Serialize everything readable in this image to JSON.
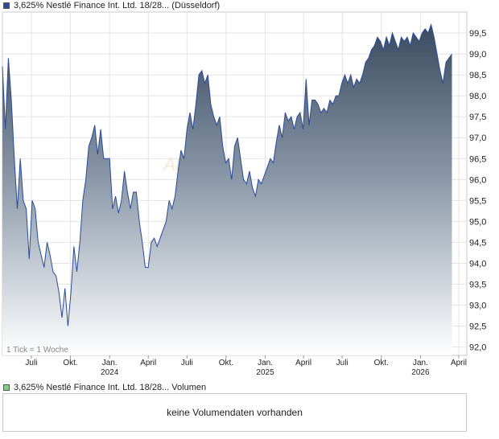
{
  "legend": {
    "price_label": "3,625% Nestlé Finance Int. Ltd. 18/28... (Düsseldorf)",
    "volume_label": "3,625% Nestlé Finance Int. Ltd. 18/28... Volumen",
    "price_color": "#2a4a9a",
    "volume_color": "#7fcf7f"
  },
  "tick_note": "1 Tick = 1 Woche",
  "watermark": "AKTIE",
  "volume_message": "keine Volumendaten vorhanden",
  "chart_data": {
    "type": "area",
    "ylim": [
      91.8,
      100.0
    ],
    "yticks": [
      92.0,
      92.5,
      93.0,
      93.5,
      94.0,
      94.5,
      95.0,
      95.5,
      96.0,
      96.5,
      97.0,
      97.5,
      98.0,
      98.5,
      99.0,
      99.5
    ],
    "ytick_labels": [
      "92,0",
      "92,5",
      "93,0",
      "93,5",
      "94,0",
      "94,5",
      "95,0",
      "95,5",
      "96,0",
      "96,5",
      "97,0",
      "97,5",
      "98,0",
      "98,5",
      "99,0",
      "99,5"
    ],
    "xlim": [
      "2023-04-24",
      "2026-04-20"
    ],
    "xticks": [
      {
        "date": "2023-07-01",
        "label": "Juli",
        "year": ""
      },
      {
        "date": "2023-10-01",
        "label": "Okt.",
        "year": ""
      },
      {
        "date": "2024-01-01",
        "label": "Jan.",
        "year": "2024"
      },
      {
        "date": "2024-04-01",
        "label": "April",
        "year": ""
      },
      {
        "date": "2024-07-01",
        "label": "Juli",
        "year": ""
      },
      {
        "date": "2024-10-01",
        "label": "Okt.",
        "year": ""
      },
      {
        "date": "2025-01-01",
        "label": "Jan.",
        "year": "2025"
      },
      {
        "date": "2025-04-01",
        "label": "April",
        "year": ""
      },
      {
        "date": "2025-07-01",
        "label": "Juli",
        "year": ""
      },
      {
        "date": "2025-10-01",
        "label": "Okt.",
        "year": ""
      },
      {
        "date": "2026-01-01",
        "label": "Jan.",
        "year": "2026"
      },
      {
        "date": "2026-04-01",
        "label": "April",
        "year": ""
      }
    ],
    "grid": true,
    "legend_position": "top-left",
    "series": [
      {
        "name": "3,625% Nestlé Finance Int. Ltd. 18/28... (Düsseldorf)",
        "color": "#2a4a9a",
        "points": [
          [
            "2023-04-24",
            98.7
          ],
          [
            "2023-05-01",
            97.2
          ],
          [
            "2023-05-08",
            98.9
          ],
          [
            "2023-05-15",
            97.9
          ],
          [
            "2023-05-22",
            96.5
          ],
          [
            "2023-05-29",
            95.3
          ],
          [
            "2023-06-05",
            96.5
          ],
          [
            "2023-06-12",
            95.5
          ],
          [
            "2023-06-19",
            95.3
          ],
          [
            "2023-06-26",
            94.1
          ],
          [
            "2023-07-03",
            95.5
          ],
          [
            "2023-07-10",
            95.3
          ],
          [
            "2023-07-17",
            94.5
          ],
          [
            "2023-07-24",
            94.2
          ],
          [
            "2023-07-31",
            93.9
          ],
          [
            "2023-08-07",
            94.5
          ],
          [
            "2023-08-14",
            94.2
          ],
          [
            "2023-08-21",
            93.8
          ],
          [
            "2023-08-28",
            93.7
          ],
          [
            "2023-09-04",
            93.3
          ],
          [
            "2023-09-11",
            92.7
          ],
          [
            "2023-09-18",
            93.4
          ],
          [
            "2023-09-25",
            92.5
          ],
          [
            "2023-10-02",
            93.3
          ],
          [
            "2023-10-09",
            94.4
          ],
          [
            "2023-10-16",
            93.8
          ],
          [
            "2023-10-23",
            94.5
          ],
          [
            "2023-10-30",
            95.5
          ],
          [
            "2023-11-06",
            96.0
          ],
          [
            "2023-11-13",
            96.8
          ],
          [
            "2023-11-20",
            97.0
          ],
          [
            "2023-11-27",
            97.3
          ],
          [
            "2023-12-04",
            96.6
          ],
          [
            "2023-12-11",
            97.2
          ],
          [
            "2023-12-18",
            96.5
          ],
          [
            "2023-12-25",
            96.5
          ],
          [
            "2024-01-01",
            96.5
          ],
          [
            "2024-01-08",
            95.3
          ],
          [
            "2024-01-15",
            95.6
          ],
          [
            "2024-01-22",
            95.2
          ],
          [
            "2024-01-29",
            95.5
          ],
          [
            "2024-02-05",
            96.2
          ],
          [
            "2024-02-12",
            95.7
          ],
          [
            "2024-02-19",
            95.3
          ],
          [
            "2024-02-26",
            95.7
          ],
          [
            "2024-03-04",
            95.7
          ],
          [
            "2024-03-11",
            95.0
          ],
          [
            "2024-03-18",
            94.5
          ],
          [
            "2024-03-25",
            93.9
          ],
          [
            "2024-04-01",
            93.9
          ],
          [
            "2024-04-08",
            94.5
          ],
          [
            "2024-04-15",
            94.6
          ],
          [
            "2024-04-22",
            94.4
          ],
          [
            "2024-04-29",
            94.6
          ],
          [
            "2024-05-06",
            94.8
          ],
          [
            "2024-05-13",
            95.0
          ],
          [
            "2024-05-20",
            95.5
          ],
          [
            "2024-05-27",
            95.3
          ],
          [
            "2024-06-03",
            95.6
          ],
          [
            "2024-06-10",
            96.2
          ],
          [
            "2024-06-17",
            96.7
          ],
          [
            "2024-06-24",
            96.5
          ],
          [
            "2024-07-01",
            97.2
          ],
          [
            "2024-07-08",
            97.6
          ],
          [
            "2024-07-15",
            97.2
          ],
          [
            "2024-07-22",
            97.8
          ],
          [
            "2024-07-29",
            98.5
          ],
          [
            "2024-08-05",
            98.6
          ],
          [
            "2024-08-12",
            98.3
          ],
          [
            "2024-08-19",
            98.5
          ],
          [
            "2024-08-26",
            97.8
          ],
          [
            "2024-09-02",
            97.5
          ],
          [
            "2024-09-09",
            97.3
          ],
          [
            "2024-09-16",
            97.5
          ],
          [
            "2024-09-23",
            96.8
          ],
          [
            "2024-09-30",
            96.4
          ],
          [
            "2024-10-07",
            96.5
          ],
          [
            "2024-10-14",
            96.0
          ],
          [
            "2024-10-21",
            96.8
          ],
          [
            "2024-10-28",
            97.0
          ],
          [
            "2024-11-04",
            96.5
          ],
          [
            "2024-11-11",
            96.0
          ],
          [
            "2024-11-18",
            95.9
          ],
          [
            "2024-11-25",
            96.2
          ],
          [
            "2024-12-02",
            95.8
          ],
          [
            "2024-12-09",
            95.6
          ],
          [
            "2024-12-16",
            96.0
          ],
          [
            "2024-12-23",
            95.9
          ],
          [
            "2024-12-30",
            96.1
          ],
          [
            "2025-01-06",
            96.3
          ],
          [
            "2025-01-13",
            96.5
          ],
          [
            "2025-01-20",
            96.4
          ],
          [
            "2025-01-27",
            96.9
          ],
          [
            "2025-02-03",
            97.3
          ],
          [
            "2025-02-10",
            97.0
          ],
          [
            "2025-02-17",
            97.6
          ],
          [
            "2025-02-24",
            97.4
          ],
          [
            "2025-03-03",
            97.5
          ],
          [
            "2025-03-10",
            97.2
          ],
          [
            "2025-03-17",
            97.5
          ],
          [
            "2025-03-24",
            97.6
          ],
          [
            "2025-03-31",
            97.2
          ],
          [
            "2025-04-07",
            98.4
          ],
          [
            "2025-04-14",
            97.3
          ],
          [
            "2025-04-21",
            97.9
          ],
          [
            "2025-04-28",
            97.9
          ],
          [
            "2025-05-05",
            97.8
          ],
          [
            "2025-05-12",
            97.6
          ],
          [
            "2025-05-19",
            97.7
          ],
          [
            "2025-05-26",
            97.6
          ],
          [
            "2025-06-02",
            97.9
          ],
          [
            "2025-06-09",
            97.8
          ],
          [
            "2025-06-16",
            98.0
          ],
          [
            "2025-06-23",
            98.0
          ],
          [
            "2025-06-30",
            98.3
          ],
          [
            "2025-07-07",
            98.5
          ],
          [
            "2025-07-14",
            98.3
          ],
          [
            "2025-07-21",
            98.5
          ],
          [
            "2025-07-28",
            98.2
          ],
          [
            "2025-08-04",
            98.4
          ],
          [
            "2025-08-11",
            98.3
          ],
          [
            "2025-08-18",
            98.5
          ],
          [
            "2025-08-25",
            98.8
          ],
          [
            "2025-09-01",
            98.9
          ],
          [
            "2025-09-08",
            99.1
          ],
          [
            "2025-09-15",
            99.2
          ],
          [
            "2025-09-22",
            99.4
          ],
          [
            "2025-09-29",
            99.3
          ],
          [
            "2025-10-06",
            99.1
          ],
          [
            "2025-10-13",
            99.4
          ],
          [
            "2025-10-20",
            99.2
          ],
          [
            "2025-10-27",
            99.5
          ],
          [
            "2025-11-03",
            99.3
          ],
          [
            "2025-11-10",
            99.1
          ],
          [
            "2025-11-17",
            99.4
          ],
          [
            "2025-11-24",
            99.3
          ],
          [
            "2025-12-01",
            99.4
          ],
          [
            "2025-12-08",
            99.2
          ],
          [
            "2025-12-15",
            99.5
          ],
          [
            "2025-12-22",
            99.4
          ],
          [
            "2025-12-29",
            99.3
          ],
          [
            "2026-01-05",
            99.5
          ],
          [
            "2026-01-12",
            99.6
          ],
          [
            "2026-01-19",
            99.5
          ],
          [
            "2026-01-26",
            99.7
          ],
          [
            "2026-02-02",
            99.4
          ],
          [
            "2026-02-09",
            99.0
          ],
          [
            "2026-02-16",
            98.6
          ],
          [
            "2026-02-23",
            98.3
          ],
          [
            "2026-03-02",
            98.8
          ],
          [
            "2026-03-09",
            98.9
          ],
          [
            "2026-03-16",
            99.0
          ]
        ]
      }
    ]
  }
}
